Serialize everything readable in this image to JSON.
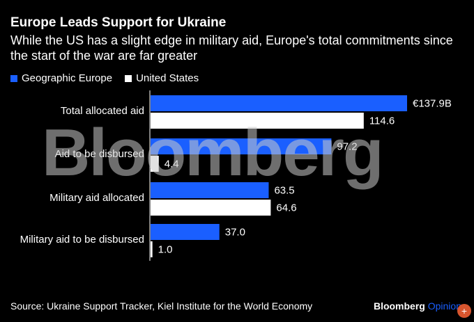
{
  "title": "Europe Leads Support for Ukraine",
  "subtitle": "While the US has a slight edge in military aid, Europe's total commitments since the start of the war are far greater",
  "legend": [
    "Geographic Europe",
    "United States"
  ],
  "source": "Source: Ukraine Support Tracker, Kiel Institute for the World Economy",
  "brand": {
    "name": "Bloomberg",
    "suffix": "Opinion"
  },
  "watermark": "Bloomberg",
  "colors": {
    "europe": "#1a5fff",
    "us": "#ffffff",
    "background": "#000000"
  },
  "icons": {
    "zoom": "zoom-in-icon"
  },
  "chart_data": {
    "type": "bar",
    "orientation": "horizontal",
    "categories": [
      "Total allocated aid",
      "Aid to be disbursed",
      "Military aid allocated",
      "Military aid to be disbursed"
    ],
    "series": [
      {
        "name": "Geographic Europe",
        "values": [
          137.9,
          97.2,
          63.5,
          37.0
        ],
        "labels": [
          "€137.9B",
          "97.2",
          "63.5",
          "37.0"
        ],
        "color": "#1a5fff"
      },
      {
        "name": "United States",
        "values": [
          114.6,
          4.4,
          64.6,
          1.0
        ],
        "labels": [
          "114.6",
          "4.4",
          "64.6",
          "1.0"
        ],
        "color": "#ffffff"
      }
    ],
    "xlim": [
      0,
      137.9
    ],
    "grid": false,
    "legend_position": "top-left"
  }
}
